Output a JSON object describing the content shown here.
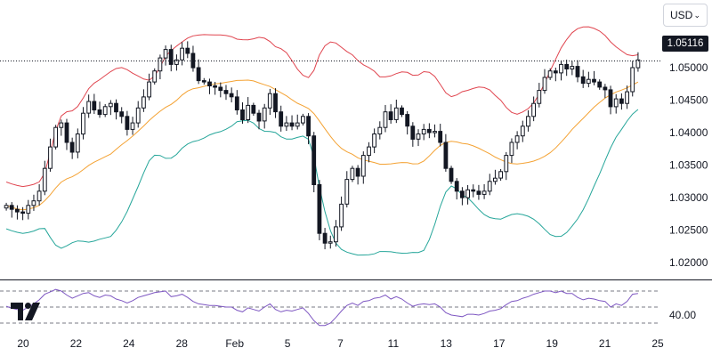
{
  "toolbar": {
    "currency": "USD"
  },
  "price_tag": "1.05116",
  "colors": {
    "upper_band": "#e0454f",
    "middle_band": "#f4a233",
    "lower_band": "#26a69a",
    "rsi_line": "#7e57c2",
    "candle": "#131722",
    "price_line": "#131722"
  },
  "chart_data": [
    {
      "type": "candlestick",
      "overlay": "bollinger-bands",
      "x_ticks": [
        "20",
        "22",
        "24",
        "28",
        "Feb",
        "5",
        "7",
        "11",
        "13",
        "17",
        "19",
        "21",
        "25"
      ],
      "y_ticks": [
        "1.05000",
        "1.04500",
        "1.04000",
        "1.03500",
        "1.03000",
        "1.02500",
        "1.02000"
      ],
      "ylim": [
        1.0185,
        1.0585
      ],
      "last_price": 1.05116,
      "grid": false,
      "bar_count": 116,
      "closes": [
        1.0288,
        1.0282,
        1.0278,
        1.0276,
        1.0288,
        1.0295,
        1.031,
        1.0345,
        1.0378,
        1.0408,
        1.0415,
        1.0385,
        1.037,
        1.0398,
        1.043,
        1.0448,
        1.0435,
        1.0428,
        1.044,
        1.0445,
        1.0432,
        1.0425,
        1.0405,
        1.0415,
        1.0438,
        1.0455,
        1.0478,
        1.0495,
        1.0515,
        1.0528,
        1.0505,
        1.0512,
        1.053,
        1.0522,
        1.05,
        1.048,
        1.0478,
        1.0472,
        1.047,
        1.0465,
        1.046,
        1.0455,
        1.0435,
        1.042,
        1.0442,
        1.043,
        1.0418,
        1.0438,
        1.046,
        1.0432,
        1.041,
        1.0415,
        1.041,
        1.0415,
        1.0425,
        1.0395,
        1.032,
        1.0245,
        1.023,
        1.0232,
        1.0255,
        1.029,
        1.0328,
        1.0345,
        1.0333,
        1.0365,
        1.0378,
        1.0398,
        1.0408,
        1.0432,
        1.042,
        1.0438,
        1.0428,
        1.041,
        1.039,
        1.0398,
        1.0405,
        1.04,
        1.0402,
        1.0385,
        1.0345,
        1.0325,
        1.031,
        1.03,
        1.0312,
        1.031,
        1.0305,
        1.031,
        1.0325,
        1.033,
        1.034,
        1.0365,
        1.0385,
        1.0395,
        1.041,
        1.0425,
        1.0445,
        1.0465,
        1.0485,
        1.0495,
        1.0492,
        1.0505,
        1.0498,
        1.0502,
        1.0486,
        1.0476,
        1.0482,
        1.0478,
        1.047,
        1.0466,
        1.044,
        1.0452,
        1.0445,
        1.0463,
        1.05,
        1.0512
      ]
    },
    {
      "type": "line",
      "indicator": "RSI",
      "y_ticks": [
        "40.00"
      ],
      "levels": [
        70,
        50,
        30
      ],
      "ylim": [
        20,
        80
      ],
      "values": [
        51.0,
        48.5,
        47.0,
        46.0,
        50.0,
        54.0,
        59.0,
        66.0,
        69.0,
        72.0,
        70.0,
        65.0,
        61.0,
        64.0,
        67.0,
        68.0,
        64.0,
        62.0,
        65.0,
        64.0,
        60.0,
        58.0,
        55.0,
        58.0,
        62.0,
        64.0,
        66.0,
        68.0,
        69.0,
        70.0,
        63.0,
        64.0,
        66.0,
        62.0,
        57.0,
        54.0,
        53.0,
        52.0,
        52.0,
        51.0,
        50.0,
        50.0,
        46.0,
        44.0,
        49.0,
        47.0,
        45.0,
        50.0,
        54.0,
        47.0,
        44.0,
        46.0,
        45.0,
        47.0,
        49.0,
        42.0,
        33.0,
        27.0,
        27.0,
        30.0,
        37.0,
        45.0,
        52.0,
        55.0,
        52.0,
        57.0,
        58.0,
        61.0,
        62.0,
        65.0,
        60.0,
        63.0,
        60.0,
        55.0,
        51.0,
        53.0,
        54.0,
        53.0,
        54.0,
        50.0,
        43.0,
        40.0,
        39.0,
        38.0,
        41.0,
        41.0,
        40.0,
        42.0,
        45.0,
        46.0,
        48.0,
        53.0,
        57.0,
        58.0,
        61.0,
        63.0,
        66.0,
        68.0,
        70.0,
        70.0,
        68.0,
        70.0,
        67.0,
        67.0,
        62.0,
        59.0,
        61.0,
        60.0,
        58.0,
        57.0,
        50.0,
        54.0,
        52.0,
        57.0,
        66.0,
        67.0
      ]
    }
  ]
}
